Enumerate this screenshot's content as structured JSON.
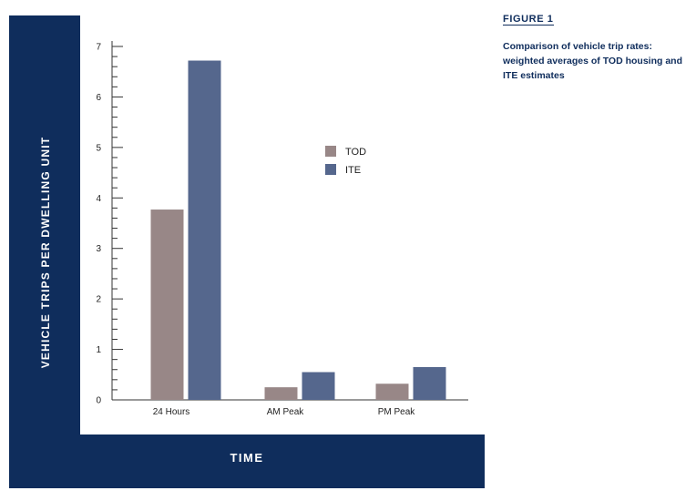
{
  "figure": {
    "label": "FIGURE 1",
    "caption": "Comparison of vehicle trip rates: weighted averages of TOD housing and ITE estimates"
  },
  "colors": {
    "frame": "#0f2d5c",
    "tod": "#988787",
    "ite": "#55678d"
  },
  "chart_data": {
    "type": "bar",
    "title": "",
    "xlabel": "TIME",
    "ylabel": "VEHICLE TRIPS PER DWELLING UNIT",
    "categories": [
      "24 Hours",
      "AM Peak",
      "PM Peak"
    ],
    "series": [
      {
        "name": "TOD",
        "values": [
          3.77,
          0.25,
          0.32
        ]
      },
      {
        "name": "ITE",
        "values": [
          6.72,
          0.55,
          0.65
        ]
      }
    ],
    "ylim": [
      0,
      7
    ],
    "yticks": [
      0,
      1,
      2,
      3,
      4,
      5,
      6,
      7
    ],
    "grid": false,
    "legend": "center-right"
  }
}
